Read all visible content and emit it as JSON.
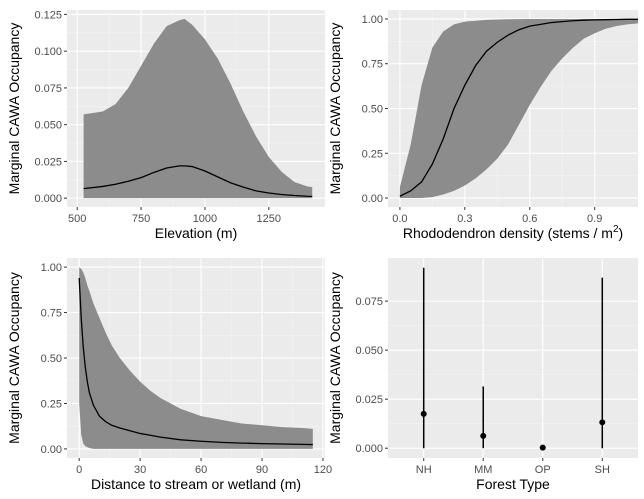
{
  "chart_data": [
    {
      "type": "area",
      "xlabel": "Elevation (m)",
      "ylabel": "Marginal CAWA Occupancy",
      "xlim": [
        460,
        1470
      ],
      "ylim": [
        -0.006,
        0.128
      ],
      "x_ticks": [
        500,
        750,
        1000,
        1250
      ],
      "x_tick_labels": [
        "500",
        "750",
        "1000",
        "1250"
      ],
      "y_ticks": [
        0,
        0.025,
        0.05,
        0.075,
        0.1,
        0.125
      ],
      "y_tick_labels": [
        "0.000",
        "0.025",
        "0.050",
        "0.075",
        "0.100",
        "0.125"
      ],
      "series": [
        {
          "x": [
            525,
            600,
            650,
            700,
            750,
            800,
            850,
            900,
            920,
            950,
            1000,
            1050,
            1100,
            1150,
            1200,
            1250,
            1300,
            1350,
            1400,
            1420
          ],
          "estimate": [
            0.0065,
            0.008,
            0.0095,
            0.0115,
            0.014,
            0.0175,
            0.0205,
            0.022,
            0.022,
            0.0215,
            0.0185,
            0.0145,
            0.0105,
            0.0075,
            0.005,
            0.0035,
            0.0025,
            0.0018,
            0.0013,
            0.0012
          ],
          "lower": [
            0,
            0,
            0,
            0,
            0,
            0,
            0,
            0,
            0,
            0,
            0,
            0,
            0,
            0,
            0,
            0,
            0,
            0,
            0,
            0
          ],
          "upper": [
            0.057,
            0.059,
            0.064,
            0.075,
            0.09,
            0.105,
            0.117,
            0.121,
            0.122,
            0.118,
            0.108,
            0.095,
            0.078,
            0.059,
            0.042,
            0.028,
            0.018,
            0.011,
            0.008,
            0.0075
          ]
        }
      ]
    },
    {
      "type": "area",
      "xlabel_main": "Rhododendron density (stems / m",
      "xlabel_superscript": "2",
      "xlabel_close": ")",
      "ylabel": "Marginal CAWA Occupancy",
      "xlim": [
        -0.055,
        1.1
      ],
      "ylim": [
        -0.05,
        1.05
      ],
      "x_ticks": [
        0,
        0.3,
        0.6,
        0.9
      ],
      "x_tick_labels": [
        "0.0",
        "0.3",
        "0.6",
        "0.9"
      ],
      "y_ticks": [
        0,
        0.25,
        0.5,
        0.75,
        1
      ],
      "y_tick_labels": [
        "0.00",
        "0.25",
        "0.50",
        "0.75",
        "1.00"
      ],
      "series": [
        {
          "x": [
            0,
            0.05,
            0.1,
            0.15,
            0.2,
            0.25,
            0.3,
            0.35,
            0.4,
            0.45,
            0.5,
            0.55,
            0.6,
            0.65,
            0.7,
            0.75,
            0.8,
            0.85,
            0.9,
            0.95,
            1.0,
            1.05,
            1.1
          ],
          "estimate": [
            0.01,
            0.04,
            0.09,
            0.19,
            0.33,
            0.5,
            0.63,
            0.74,
            0.82,
            0.87,
            0.91,
            0.94,
            0.96,
            0.97,
            0.98,
            0.985,
            0.99,
            0.993,
            0.995,
            0.996,
            0.997,
            0.998,
            0.998
          ],
          "lower": [
            0,
            0,
            0,
            0.005,
            0.02,
            0.04,
            0.07,
            0.11,
            0.16,
            0.22,
            0.3,
            0.41,
            0.52,
            0.62,
            0.71,
            0.78,
            0.84,
            0.89,
            0.92,
            0.945,
            0.96,
            0.97,
            0.975
          ],
          "upper": [
            0.06,
            0.3,
            0.63,
            0.84,
            0.93,
            0.97,
            0.985,
            0.99,
            0.995,
            0.997,
            0.998,
            0.999,
            1,
            1,
            1,
            1,
            1,
            1,
            1,
            1,
            1,
            1,
            1
          ]
        }
      ]
    },
    {
      "type": "area",
      "xlabel": "Distance to stream or wetland (m)",
      "ylabel": "Marginal CAWA Occupancy",
      "xlim": [
        -6,
        121
      ],
      "ylim": [
        -0.05,
        1.05
      ],
      "x_ticks": [
        0,
        30,
        60,
        90,
        120
      ],
      "x_tick_labels": [
        "0",
        "30",
        "60",
        "90",
        "120"
      ],
      "y_ticks": [
        0,
        0.25,
        0.5,
        0.75,
        1
      ],
      "y_tick_labels": [
        "0.00",
        "0.25",
        "0.50",
        "0.75",
        "1.00"
      ],
      "series": [
        {
          "x": [
            0,
            1,
            2,
            3,
            4,
            5,
            7,
            10,
            13,
            16,
            20,
            25,
            30,
            35,
            40,
            50,
            60,
            70,
            80,
            90,
            100,
            110,
            115
          ],
          "estimate": [
            0.94,
            0.72,
            0.56,
            0.45,
            0.37,
            0.31,
            0.24,
            0.18,
            0.15,
            0.13,
            0.115,
            0.1,
            0.085,
            0.075,
            0.065,
            0.05,
            0.042,
            0.036,
            0.032,
            0.029,
            0.027,
            0.025,
            0.024
          ],
          "lower": [
            0.25,
            0.08,
            0.03,
            0.015,
            0.01,
            0.005,
            0,
            0,
            0,
            0,
            0,
            0,
            0,
            0,
            0,
            0,
            0,
            0,
            0,
            0,
            0,
            0,
            0
          ],
          "upper": [
            1,
            0.99,
            0.97,
            0.94,
            0.9,
            0.87,
            0.8,
            0.72,
            0.64,
            0.57,
            0.5,
            0.43,
            0.37,
            0.32,
            0.28,
            0.22,
            0.18,
            0.16,
            0.14,
            0.13,
            0.12,
            0.115,
            0.11
          ]
        }
      ]
    },
    {
      "type": "scatter",
      "xlabel": "Forest Type",
      "ylabel": "Marginal CAWA Occupancy",
      "categories": [
        "NH",
        "MM",
        "OP",
        "SH"
      ],
      "ylim": [
        -0.005,
        0.097
      ],
      "y_ticks": [
        0,
        0.025,
        0.05,
        0.075
      ],
      "y_tick_labels": [
        "0.000",
        "0.025",
        "0.050",
        "0.075"
      ],
      "estimate": [
        0.0175,
        0.0063,
        0.0003,
        0.0132
      ],
      "lower": [
        0,
        0,
        0,
        0
      ],
      "upper": [
        0.092,
        0.0315,
        0.0005,
        0.087
      ]
    }
  ]
}
